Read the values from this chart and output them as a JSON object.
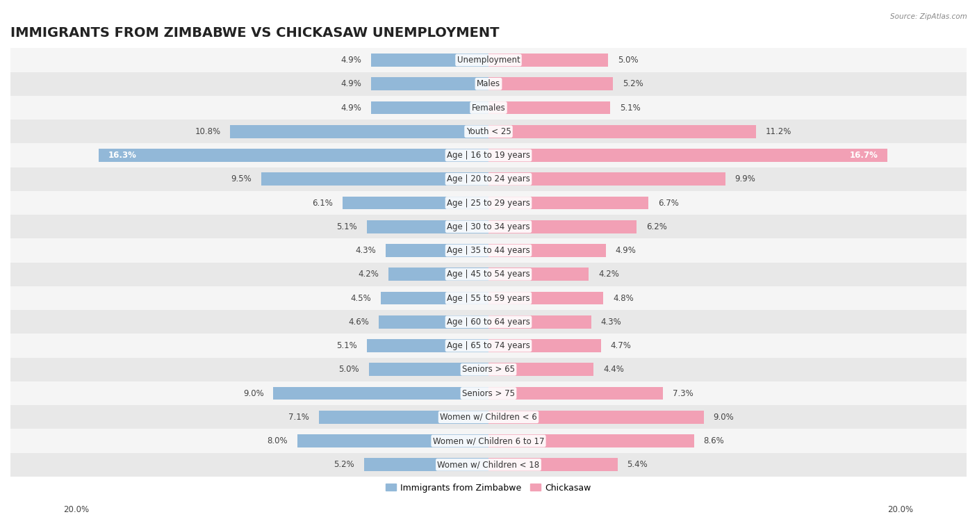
{
  "title": "IMMIGRANTS FROM ZIMBABWE VS CHICKASAW UNEMPLOYMENT",
  "source": "Source: ZipAtlas.com",
  "categories": [
    "Unemployment",
    "Males",
    "Females",
    "Youth < 25",
    "Age | 16 to 19 years",
    "Age | 20 to 24 years",
    "Age | 25 to 29 years",
    "Age | 30 to 34 years",
    "Age | 35 to 44 years",
    "Age | 45 to 54 years",
    "Age | 55 to 59 years",
    "Age | 60 to 64 years",
    "Age | 65 to 74 years",
    "Seniors > 65",
    "Seniors > 75",
    "Women w/ Children < 6",
    "Women w/ Children 6 to 17",
    "Women w/ Children < 18"
  ],
  "zimbabwe_values": [
    4.9,
    4.9,
    4.9,
    10.8,
    16.3,
    9.5,
    6.1,
    5.1,
    4.3,
    4.2,
    4.5,
    4.6,
    5.1,
    5.0,
    9.0,
    7.1,
    8.0,
    5.2
  ],
  "chickasaw_values": [
    5.0,
    5.2,
    5.1,
    11.2,
    16.7,
    9.9,
    6.7,
    6.2,
    4.9,
    4.2,
    4.8,
    4.3,
    4.7,
    4.4,
    7.3,
    9.0,
    8.6,
    5.4
  ],
  "zimbabwe_color": "#92b8d8",
  "chickasaw_color": "#f2a0b5",
  "bar_height": 0.55,
  "xlim": 20.0,
  "background_color": "#ffffff",
  "row_color_odd": "#f5f5f5",
  "row_color_even": "#e8e8e8",
  "title_fontsize": 14,
  "label_fontsize": 8.5,
  "value_fontsize": 8.5,
  "legend_label_zimbabwe": "Immigrants from Zimbabwe",
  "legend_label_chickasaw": "Chickasaw"
}
